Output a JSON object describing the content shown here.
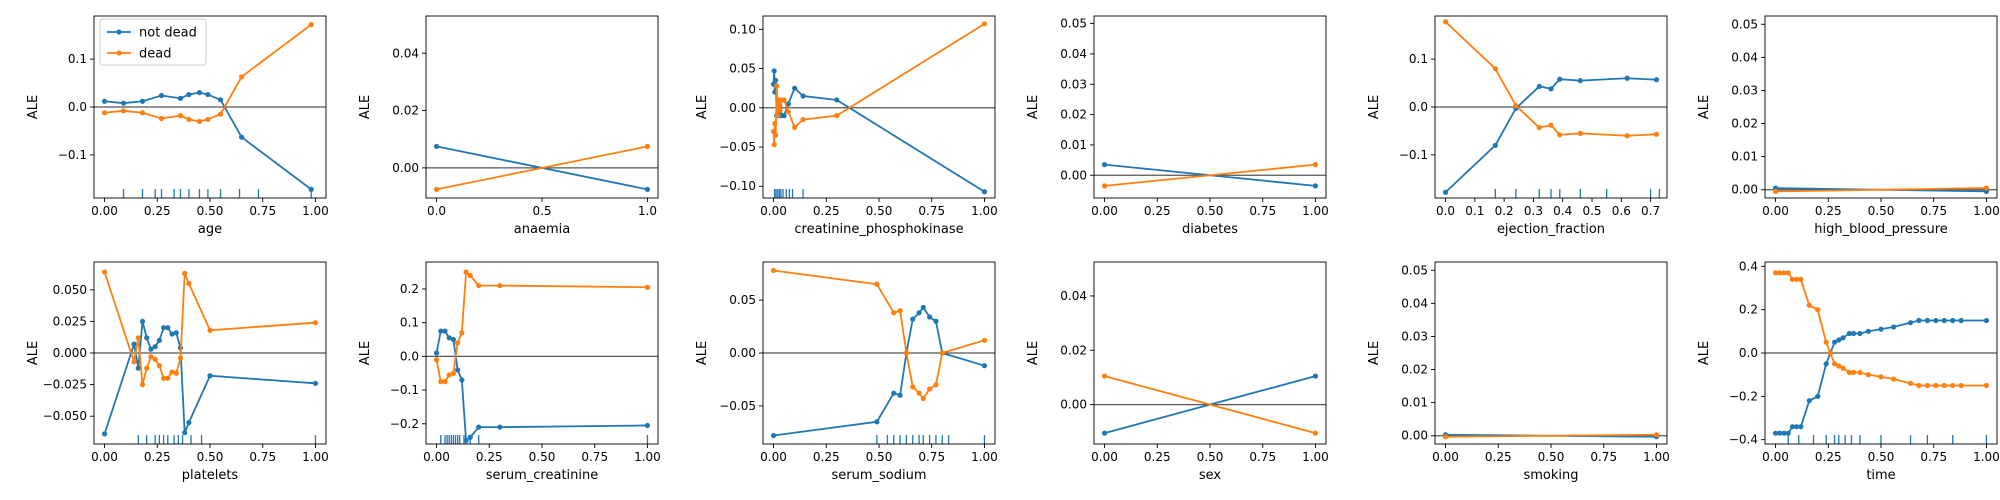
{
  "colors": {
    "not_dead": "#1f77b4",
    "dead": "#ff7f0e",
    "zero_line": "#555555",
    "rug": "#1f77b4"
  },
  "legend": {
    "entries": [
      "not dead",
      "dead"
    ],
    "placement": "upper-left of first panel"
  },
  "chart_data": [
    {
      "type": "line",
      "xlabel": "age",
      "ylabel": "ALE",
      "xlim": [
        -0.05,
        1.05
      ],
      "ylim": [
        -0.19,
        0.19
      ],
      "xticks": [
        0.0,
        0.25,
        0.5,
        0.75,
        1.0
      ],
      "xtick_labels": [
        "0.00",
        "0.25",
        "0.50",
        "0.75",
        "1.00"
      ],
      "yticks": [
        -0.1,
        0.0,
        0.1
      ],
      "ytick_labels": [
        "−0.1",
        "0.0",
        "0.1"
      ],
      "rug": [
        0.09,
        0.18,
        0.24,
        0.27,
        0.33,
        0.36,
        0.4,
        0.45,
        0.49,
        0.55,
        0.64,
        0.73,
        0.98
      ],
      "series": [
        {
          "name": "not dead",
          "x": [
            0.0,
            0.09,
            0.18,
            0.27,
            0.36,
            0.4,
            0.45,
            0.49,
            0.55,
            0.65,
            0.98
          ],
          "y": [
            0.012,
            0.008,
            0.012,
            0.024,
            0.018,
            0.026,
            0.03,
            0.026,
            0.015,
            -0.063,
            -0.172
          ]
        },
        {
          "name": "dead",
          "x": [
            0.0,
            0.09,
            0.18,
            0.27,
            0.36,
            0.4,
            0.45,
            0.49,
            0.55,
            0.65,
            0.98
          ],
          "y": [
            -0.012,
            -0.008,
            -0.012,
            -0.024,
            -0.018,
            -0.026,
            -0.03,
            -0.026,
            -0.015,
            0.063,
            0.172
          ]
        }
      ]
    },
    {
      "type": "line",
      "xlabel": "anaemia",
      "ylabel": "ALE",
      "xlim": [
        -0.05,
        1.05
      ],
      "ylim": [
        -0.0105,
        0.053
      ],
      "xticks": [
        0.0,
        0.5,
        1.0
      ],
      "xtick_labels": [
        "0.0",
        "0.5",
        "1.0"
      ],
      "yticks": [
        0.0,
        0.02,
        0.04
      ],
      "ytick_labels": [
        "0.00",
        "0.02",
        "0.04"
      ],
      "rug": [],
      "series": [
        {
          "name": "not dead",
          "x": [
            0,
            1
          ],
          "y": [
            0.0075,
            -0.0075
          ]
        },
        {
          "name": "dead",
          "x": [
            0,
            1
          ],
          "y": [
            -0.0075,
            0.0075
          ]
        }
      ]
    },
    {
      "type": "line",
      "xlabel": "creatinine_phosphokinase",
      "ylabel": "ALE",
      "xlim": [
        -0.05,
        1.05
      ],
      "ylim": [
        -0.115,
        0.117
      ],
      "xticks": [
        0.0,
        0.25,
        0.5,
        0.75,
        1.0
      ],
      "xtick_labels": [
        "0.00",
        "0.25",
        "0.50",
        "0.75",
        "1.00"
      ],
      "yticks": [
        -0.1,
        -0.05,
        0.0,
        0.05,
        0.1
      ],
      "ytick_labels": [
        "−0.10",
        "−0.05",
        "0.00",
        "0.05",
        "0.10"
      ],
      "rug": [
        0.005,
        0.012,
        0.02,
        0.028,
        0.035,
        0.045,
        0.06,
        0.075,
        0.09,
        0.14
      ],
      "series": [
        {
          "name": "not dead",
          "x": [
            0.0,
            0.003,
            0.006,
            0.01,
            0.015,
            0.02,
            0.025,
            0.03,
            0.04,
            0.05,
            0.07,
            0.1,
            0.14,
            0.3,
            1.0
          ],
          "y": [
            0.03,
            0.047,
            0.02,
            0.035,
            -0.01,
            0.01,
            -0.01,
            0.003,
            -0.01,
            -0.01,
            0.005,
            0.025,
            0.015,
            0.01,
            -0.107
          ]
        },
        {
          "name": "dead",
          "x": [
            0.0,
            0.003,
            0.006,
            0.01,
            0.015,
            0.02,
            0.025,
            0.03,
            0.04,
            0.05,
            0.07,
            0.1,
            0.14,
            0.3,
            1.0
          ],
          "y": [
            -0.03,
            -0.047,
            -0.02,
            -0.035,
            0.028,
            -0.01,
            0.01,
            -0.003,
            0.01,
            0.01,
            -0.005,
            -0.025,
            -0.015,
            -0.01,
            0.107
          ]
        }
      ]
    },
    {
      "type": "line",
      "xlabel": "diabetes",
      "ylabel": "ALE",
      "xlim": [
        -0.05,
        1.05
      ],
      "ylim": [
        -0.0075,
        0.0525
      ],
      "xticks": [
        0.0,
        0.25,
        0.5,
        0.75,
        1.0
      ],
      "xtick_labels": [
        "0.00",
        "0.25",
        "0.50",
        "0.75",
        "1.00"
      ],
      "yticks": [
        0.0,
        0.01,
        0.02,
        0.03,
        0.04,
        0.05
      ],
      "ytick_labels": [
        "0.00",
        "0.01",
        "0.02",
        "0.03",
        "0.04",
        "0.05"
      ],
      "rug": [],
      "series": [
        {
          "name": "not dead",
          "x": [
            0,
            1
          ],
          "y": [
            0.0035,
            -0.0035
          ]
        },
        {
          "name": "dead",
          "x": [
            0,
            1
          ],
          "y": [
            -0.0035,
            0.0035
          ]
        }
      ]
    },
    {
      "type": "line",
      "xlabel": "ejection_fraction",
      "ylabel": "ALE",
      "xlim": [
        -0.036,
        0.756
      ],
      "ylim": [
        -0.19,
        0.19
      ],
      "xticks": [
        0.0,
        0.1,
        0.2,
        0.3,
        0.4,
        0.5,
        0.6,
        0.7
      ],
      "xtick_labels": [
        "0.0",
        "0.1",
        "0.2",
        "0.3",
        "0.4",
        "0.5",
        "0.6",
        "0.7"
      ],
      "yticks": [
        -0.1,
        0.0,
        0.1
      ],
      "ytick_labels": [
        "−0.1",
        "0.0",
        "0.1"
      ],
      "rug": [
        0.17,
        0.24,
        0.32,
        0.36,
        0.39,
        0.46,
        0.55,
        0.7,
        0.73
      ],
      "series": [
        {
          "name": "not dead",
          "x": [
            0.0,
            0.17,
            0.24,
            0.32,
            0.36,
            0.39,
            0.46,
            0.62,
            0.72
          ],
          "y": [
            -0.178,
            -0.08,
            -0.003,
            0.043,
            0.038,
            0.058,
            0.055,
            0.06,
            0.057
          ]
        },
        {
          "name": "dead",
          "x": [
            0.0,
            0.17,
            0.24,
            0.32,
            0.36,
            0.39,
            0.46,
            0.62,
            0.72
          ],
          "y": [
            0.178,
            0.08,
            0.003,
            -0.043,
            -0.038,
            -0.058,
            -0.055,
            -0.06,
            -0.057
          ]
        }
      ]
    },
    {
      "type": "line",
      "xlabel": "high_blood_pressure",
      "ylabel": "ALE",
      "xlim": [
        -0.05,
        1.05
      ],
      "ylim": [
        -0.0025,
        0.0525
      ],
      "xticks": [
        0.0,
        0.25,
        0.5,
        0.75,
        1.0
      ],
      "xtick_labels": [
        "0.00",
        "0.25",
        "0.50",
        "0.75",
        "1.00"
      ],
      "yticks": [
        0.0,
        0.01,
        0.02,
        0.03,
        0.04,
        0.05
      ],
      "ytick_labels": [
        "0.00",
        "0.01",
        "0.02",
        "0.03",
        "0.04",
        "0.05"
      ],
      "rug": [],
      "series": [
        {
          "name": "not dead",
          "x": [
            0,
            1
          ],
          "y": [
            0.0005,
            -0.0005
          ]
        },
        {
          "name": "dead",
          "x": [
            0,
            1
          ],
          "y": [
            -0.0005,
            0.0005
          ]
        }
      ]
    },
    {
      "type": "line",
      "xlabel": "platelets",
      "ylabel": "ALE",
      "xlim": [
        -0.05,
        1.05
      ],
      "ylim": [
        -0.072,
        0.072
      ],
      "xticks": [
        0.0,
        0.25,
        0.5,
        0.75,
        1.0
      ],
      "xtick_labels": [
        "0.00",
        "0.25",
        "0.50",
        "0.75",
        "1.00"
      ],
      "yticks": [
        -0.05,
        -0.025,
        0.0,
        0.025,
        0.05
      ],
      "ytick_labels": [
        "−0.050",
        "−0.025",
        "0.000",
        "0.025",
        "0.050"
      ],
      "rug": [
        0.16,
        0.2,
        0.24,
        0.26,
        0.28,
        0.3,
        0.33,
        0.35,
        0.37,
        0.41,
        0.46,
        1.0
      ],
      "series": [
        {
          "name": "not dead",
          "x": [
            0.0,
            0.14,
            0.16,
            0.18,
            0.2,
            0.22,
            0.24,
            0.26,
            0.28,
            0.3,
            0.32,
            0.34,
            0.36,
            0.38,
            0.4,
            0.5,
            1.0
          ],
          "y": [
            -0.064,
            0.007,
            -0.012,
            0.025,
            0.012,
            0.003,
            0.005,
            0.01,
            0.02,
            0.02,
            0.015,
            0.016,
            0.004,
            -0.063,
            -0.055,
            -0.018,
            -0.024
          ]
        },
        {
          "name": "dead",
          "x": [
            0.0,
            0.14,
            0.16,
            0.18,
            0.2,
            0.22,
            0.24,
            0.26,
            0.28,
            0.3,
            0.32,
            0.34,
            0.36,
            0.38,
            0.4,
            0.5,
            1.0
          ],
          "y": [
            0.064,
            -0.007,
            0.012,
            -0.025,
            -0.012,
            -0.003,
            -0.005,
            -0.01,
            -0.02,
            -0.02,
            -0.015,
            -0.016,
            -0.004,
            0.063,
            0.055,
            0.018,
            0.024
          ]
        }
      ]
    },
    {
      "type": "line",
      "xlabel": "serum_creatinine",
      "ylabel": "ALE",
      "xlim": [
        -0.05,
        1.05
      ],
      "ylim": [
        -0.26,
        0.28
      ],
      "xticks": [
        0.0,
        0.25,
        0.5,
        0.75,
        1.0
      ],
      "xtick_labels": [
        "0.00",
        "0.25",
        "0.50",
        "0.75",
        "1.00"
      ],
      "yticks": [
        -0.2,
        -0.1,
        0.0,
        0.1,
        0.2
      ],
      "ytick_labels": [
        "−0.2",
        "−0.1",
        "0.0",
        "0.1",
        "0.2"
      ],
      "rug": [
        0.02,
        0.04,
        0.05,
        0.06,
        0.07,
        0.08,
        0.09,
        0.1,
        0.11,
        0.13,
        0.16,
        0.2,
        1.0
      ],
      "series": [
        {
          "name": "not dead",
          "x": [
            0.0,
            0.02,
            0.04,
            0.06,
            0.08,
            0.1,
            0.12,
            0.14,
            0.16,
            0.2,
            0.3,
            1.0
          ],
          "y": [
            0.01,
            0.075,
            0.075,
            0.055,
            0.05,
            -0.04,
            -0.07,
            -0.25,
            -0.24,
            -0.21,
            -0.21,
            -0.205
          ]
        },
        {
          "name": "dead",
          "x": [
            0.0,
            0.02,
            0.04,
            0.06,
            0.08,
            0.1,
            0.12,
            0.14,
            0.16,
            0.2,
            0.3,
            1.0
          ],
          "y": [
            -0.01,
            -0.075,
            -0.075,
            -0.055,
            -0.05,
            0.04,
            0.07,
            0.25,
            0.24,
            0.21,
            0.21,
            0.205
          ]
        }
      ]
    },
    {
      "type": "line",
      "xlabel": "serum_sodium",
      "ylabel": "ALE",
      "xlim": [
        -0.05,
        1.05
      ],
      "ylim": [
        -0.086,
        0.086
      ],
      "xticks": [
        0.0,
        0.25,
        0.5,
        0.75,
        1.0
      ],
      "xtick_labels": [
        "0.00",
        "0.25",
        "0.50",
        "0.75",
        "1.00"
      ],
      "yticks": [
        -0.05,
        0.0,
        0.05
      ],
      "ytick_labels": [
        "−0.05",
        "0.00",
        "0.05"
      ],
      "rug": [
        0.49,
        0.54,
        0.57,
        0.6,
        0.63,
        0.66,
        0.69,
        0.71,
        0.74,
        0.77,
        0.8,
        0.83,
        1.0
      ],
      "series": [
        {
          "name": "not dead",
          "x": [
            0.0,
            0.49,
            0.57,
            0.6,
            0.63,
            0.66,
            0.69,
            0.71,
            0.74,
            0.77,
            0.8,
            1.0
          ],
          "y": [
            -0.078,
            -0.065,
            -0.038,
            -0.04,
            0.0,
            0.032,
            0.038,
            0.043,
            0.034,
            0.03,
            0.0,
            -0.012
          ]
        },
        {
          "name": "dead",
          "x": [
            0.0,
            0.49,
            0.57,
            0.6,
            0.63,
            0.66,
            0.69,
            0.71,
            0.74,
            0.77,
            0.8,
            1.0
          ],
          "y": [
            0.078,
            0.065,
            0.038,
            0.04,
            0.0,
            -0.032,
            -0.038,
            -0.043,
            -0.034,
            -0.03,
            0.0,
            0.012
          ]
        }
      ]
    },
    {
      "type": "line",
      "xlabel": "sex",
      "ylabel": "ALE",
      "xlim": [
        -0.05,
        1.05
      ],
      "ylim": [
        -0.0145,
        0.0525
      ],
      "xticks": [
        0.0,
        0.25,
        0.5,
        0.75,
        1.0
      ],
      "xtick_labels": [
        "0.00",
        "0.25",
        "0.50",
        "0.75",
        "1.00"
      ],
      "yticks": [
        0.0,
        0.02,
        0.04
      ],
      "ytick_labels": [
        "0.00",
        "0.02",
        "0.04"
      ],
      "rug": [],
      "series": [
        {
          "name": "not dead",
          "x": [
            0,
            1
          ],
          "y": [
            -0.0105,
            0.0105
          ]
        },
        {
          "name": "dead",
          "x": [
            0,
            1
          ],
          "y": [
            0.0105,
            -0.0105
          ]
        }
      ]
    },
    {
      "type": "line",
      "xlabel": "smoking",
      "ylabel": "ALE",
      "xlim": [
        -0.05,
        1.05
      ],
      "ylim": [
        -0.0025,
        0.0525
      ],
      "xticks": [
        0.0,
        0.25,
        0.5,
        0.75,
        1.0
      ],
      "xtick_labels": [
        "0.00",
        "0.25",
        "0.50",
        "0.75",
        "1.00"
      ],
      "yticks": [
        0.0,
        0.01,
        0.02,
        0.03,
        0.04,
        0.05
      ],
      "ytick_labels": [
        "0.00",
        "0.01",
        "0.02",
        "0.03",
        "0.04",
        "0.05"
      ],
      "rug": [],
      "series": [
        {
          "name": "not dead",
          "x": [
            0,
            1
          ],
          "y": [
            0.0003,
            -0.0003
          ]
        },
        {
          "name": "dead",
          "x": [
            0,
            1
          ],
          "y": [
            -0.0003,
            0.0003
          ]
        }
      ]
    },
    {
      "type": "line",
      "xlabel": "time",
      "ylabel": "ALE",
      "xlim": [
        -0.05,
        1.05
      ],
      "ylim": [
        -0.42,
        0.42
      ],
      "xticks": [
        0.0,
        0.25,
        0.5,
        0.75,
        1.0
      ],
      "xtick_labels": [
        "0.00",
        "0.25",
        "0.50",
        "0.75",
        "1.00"
      ],
      "yticks": [
        -0.4,
        -0.2,
        0.0,
        0.2,
        0.4
      ],
      "ytick_labels": [
        "−0.4",
        "−0.2",
        "0.0",
        "0.2",
        "0.4"
      ],
      "rug": [
        0.06,
        0.11,
        0.18,
        0.24,
        0.28,
        0.3,
        0.33,
        0.36,
        0.4,
        0.5,
        0.64,
        0.72,
        0.84,
        1.0
      ],
      "series": [
        {
          "name": "not dead",
          "x": [
            0.0,
            0.02,
            0.04,
            0.06,
            0.08,
            0.1,
            0.12,
            0.16,
            0.2,
            0.24,
            0.26,
            0.28,
            0.3,
            0.32,
            0.35,
            0.37,
            0.4,
            0.44,
            0.5,
            0.56,
            0.64,
            0.68,
            0.72,
            0.76,
            0.8,
            0.84,
            0.88,
            1.0
          ],
          "y": [
            -0.37,
            -0.37,
            -0.37,
            -0.37,
            -0.34,
            -0.34,
            -0.34,
            -0.22,
            -0.2,
            -0.05,
            0.0,
            0.05,
            0.06,
            0.07,
            0.09,
            0.09,
            0.09,
            0.1,
            0.11,
            0.12,
            0.14,
            0.15,
            0.15,
            0.15,
            0.15,
            0.15,
            0.15,
            0.15
          ]
        },
        {
          "name": "dead",
          "x": [
            0.0,
            0.02,
            0.04,
            0.06,
            0.08,
            0.1,
            0.12,
            0.16,
            0.2,
            0.24,
            0.26,
            0.28,
            0.3,
            0.32,
            0.35,
            0.37,
            0.4,
            0.44,
            0.5,
            0.56,
            0.64,
            0.68,
            0.72,
            0.76,
            0.8,
            0.84,
            0.88,
            1.0
          ],
          "y": [
            0.37,
            0.37,
            0.37,
            0.37,
            0.34,
            0.34,
            0.34,
            0.22,
            0.2,
            0.05,
            0.0,
            -0.05,
            -0.06,
            -0.07,
            -0.09,
            -0.09,
            -0.09,
            -0.1,
            -0.11,
            -0.12,
            -0.14,
            -0.15,
            -0.15,
            -0.15,
            -0.15,
            -0.15,
            -0.15,
            -0.15
          ]
        }
      ]
    }
  ]
}
